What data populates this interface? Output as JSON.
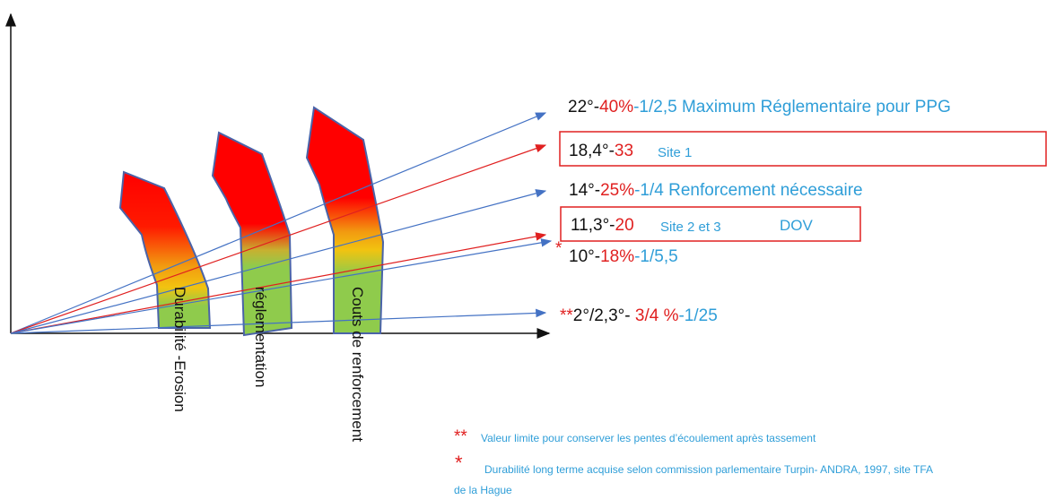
{
  "colors": {
    "blue": "#2F9ED8",
    "red": "#E02020",
    "black": "#111111",
    "line_blue": "#4472C4",
    "line_red": "#E02020",
    "box_red": "#E02020",
    "arrow_green": "#8FCB4C",
    "arrow_yellow": "#F2C310",
    "arrow_red": "#FF0000",
    "arrow_outline": "#4A63A8"
  },
  "slopes": [
    {
      "deg": "22°",
      "pct": "40%",
      "ratio": "1/2,5",
      "note": "Maximum Réglementaire pour PPG"
    },
    {
      "deg": "18,4°",
      "pct": "33"
    },
    {
      "deg": "14°",
      "pct": "25%",
      "ratio": "1/4",
      "note": "Renforcement nécessaire"
    },
    {
      "deg": "11,3°",
      "pct": "20"
    },
    {
      "deg": "10°",
      "pct": "18%",
      "ratio": "1/5,5"
    },
    {
      "deg": "2°/2,3°",
      "pct": "3/4 %",
      "ratio": "1/25",
      "mark": "**"
    }
  ],
  "boxes": {
    "site1": "Site 1",
    "site23": "Site 2 et 3",
    "dov": "DOV"
  },
  "star_mark": "*",
  "arrows": [
    {
      "label": "Durabilité -Erosion"
    },
    {
      "label": "réglementation"
    },
    {
      "label": "Couts de renforcement"
    }
  ],
  "footnotes": {
    "fn1_mark": "**",
    "fn1_text": "Valeur limite pour conserver les pentes d’écoulement après tassement",
    "fn2_mark": "*",
    "fn2_text_line1": "Durabilité long terme  acquise selon commission parlementaire Turpin- ANDRA, 1997, site TFA",
    "fn2_text_line2": "de la Hague"
  }
}
